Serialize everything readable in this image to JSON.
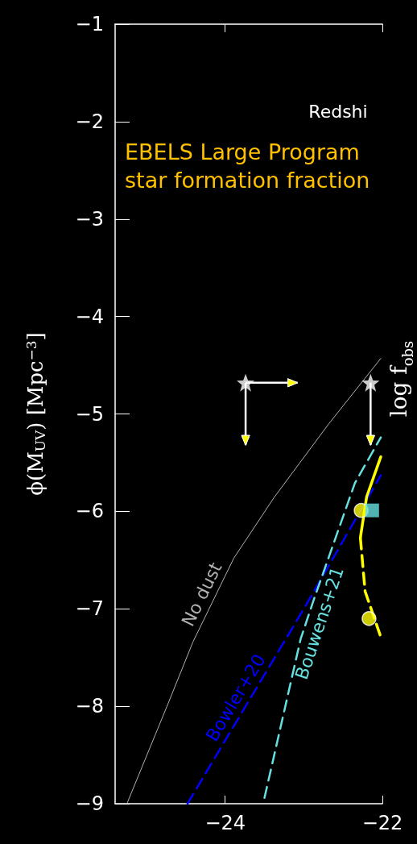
{
  "chart_data": {
    "type": "line",
    "title": "EBELS Large Program",
    "subtitle": "star formation fraction",
    "ylabel": "ϕ(M$_{UV}$) [Mpc$^{−3}$]",
    "annotations": [
      "Redshi",
      "log f$_{obs}$"
    ],
    "xlim": [
      -25.4,
      -22
    ],
    "xticks": [
      -24,
      -22
    ],
    "ylim": [
      -9,
      -1
    ],
    "yticks": [
      -9,
      -8,
      -7,
      -6,
      -5,
      -4,
      -3,
      -2,
      -1
    ],
    "grid": false,
    "legend": false,
    "series": [
      {
        "name": "No dust",
        "color": "#b0b0b0",
        "line_style": "solid",
        "marker": "none",
        "x": [
          -25.25,
          -24.74,
          -24.41,
          -23.89,
          -23.38,
          -22.69,
          -22.02
        ],
        "values": [
          -9,
          -8.0,
          -7.34,
          -6.48,
          -5.86,
          -5.11,
          -4.43
        ]
      },
      {
        "name": "Bowler+20",
        "color": "#0000ff",
        "line_style": "dashed",
        "marker": "none",
        "x": [
          -24.48,
          -22.97,
          -22.02
        ],
        "values": [
          -9,
          -6.96,
          -5.63
        ]
      },
      {
        "name": "Bouwens+21",
        "color": "#66e0e0",
        "line_style": "dashed",
        "marker": "none",
        "x": [
          -23.5,
          -23.04,
          -22.87,
          -22.35,
          -22.02
        ],
        "values": [
          -8.94,
          -7.31,
          -6.9,
          -5.71,
          -5.24
        ]
      },
      {
        "color": "#ffff00",
        "line_style": "solid",
        "marker": "none",
        "x": [
          -22.02,
          -22.2,
          -22.28
        ],
        "values": [
          -5.44,
          -5.85,
          -6.27
        ]
      },
      {
        "color": "#ffff00",
        "line_style": "dashed",
        "marker": "none",
        "x": [
          -22.28,
          -22.22,
          -22.02
        ],
        "values": [
          -6.27,
          -6.82,
          -7.29
        ]
      },
      {
        "type": "scatter",
        "color": "#ffff00",
        "marker": "circle",
        "x": [
          -22.27,
          -22.17
        ],
        "values": [
          -5.99,
          -7.1
        ]
      },
      {
        "type": "scatter",
        "color": "#66e0e0",
        "marker": "square",
        "x": [
          -22.13
        ],
        "values": [
          -5.99
        ]
      },
      {
        "type": "scatter",
        "color": "#ffffff",
        "marker": "star",
        "x": [
          -23.74,
          -22.15
        ],
        "values": [
          -4.68,
          -4.68
        ],
        "errors": [
          [
            -5.32,
            -4.68
          ],
          [
            -5.32,
            -4.68
          ]
        ],
        "xerrors": [
          [
            -23.74,
            -23.08
          ],
          null
        ]
      }
    ]
  }
}
